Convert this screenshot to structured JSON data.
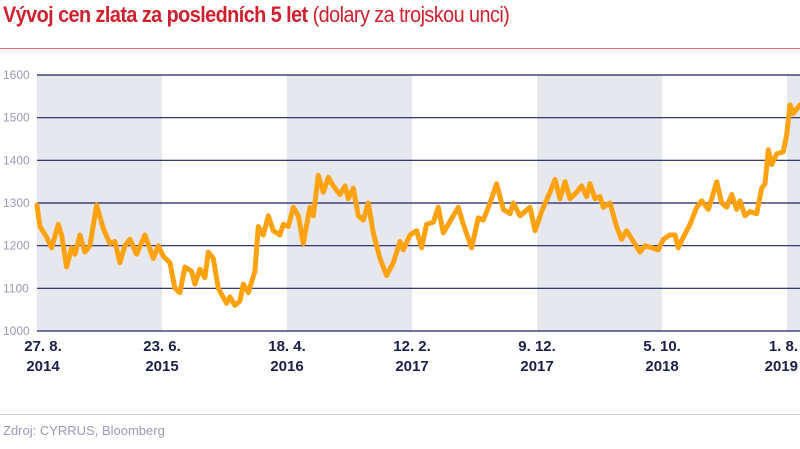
{
  "title": {
    "bold": "Vývoj cen zlata za posledních 5 let",
    "normal": "(dolary za trojskou unci)"
  },
  "source": "Zdroj: CYRRUS, Bloomberg",
  "colors": {
    "title": "#d0202e",
    "line": "#ffa20f",
    "grid": "#1c2260",
    "band": "#e7e7ee",
    "axis_text": "#9a9ab5",
    "tick_text": "#1c1f4a"
  },
  "chart_data": {
    "type": "line",
    "title": "Vývoj cen zlata za posledních 5 let (dolary za trojskou unci)",
    "xlabel": "",
    "ylabel": "",
    "xlim": [
      "2014-08-27",
      "2019-09-01"
    ],
    "ylim": [
      1000,
      1600
    ],
    "yticks": [
      1000,
      1100,
      1200,
      1300,
      1400,
      1500,
      1600
    ],
    "xticks": [
      {
        "date": "2014-08-27",
        "line1": "27. 8.",
        "line2": "2014"
      },
      {
        "date": "2015-06-23",
        "line1": "23. 6.",
        "line2": "2015"
      },
      {
        "date": "2016-04-18",
        "line1": "18. 4.",
        "line2": "2016"
      },
      {
        "date": "2017-02-12",
        "line1": "12. 2.",
        "line2": "2017"
      },
      {
        "date": "2017-12-09",
        "line1": "9. 12.",
        "line2": "2017"
      },
      {
        "date": "2018-10-05",
        "line1": "5. 10.",
        "line2": "2018"
      },
      {
        "date": "2019-08-01",
        "line1": "1. 8.",
        "line2": "2019"
      }
    ],
    "grid": true,
    "alternating_bands": true,
    "series": [
      {
        "x": [
          "2014-08-27",
          "2014-09-03",
          "2014-09-19",
          "2014-10-01",
          "2014-10-17",
          "2014-10-25",
          "2014-11-06",
          "2014-11-18",
          "2014-11-26",
          "2014-12-08",
          "2014-12-20",
          "2015-01-01",
          "2015-01-17",
          "2015-02-02",
          "2015-02-18",
          "2015-03-02",
          "2015-03-14",
          "2015-03-26",
          "2015-04-07",
          "2015-04-23",
          "2015-05-13",
          "2015-06-02",
          "2015-06-14",
          "2015-06-26",
          "2015-07-12",
          "2015-07-24",
          "2015-08-05",
          "2015-08-17",
          "2015-09-02",
          "2015-09-10",
          "2015-09-22",
          "2015-10-04",
          "2015-10-12",
          "2015-10-24",
          "2015-11-05",
          "2015-11-25",
          "2015-12-03",
          "2015-12-15",
          "2015-12-27",
          "2016-01-04",
          "2016-01-16",
          "2016-02-01",
          "2016-02-09",
          "2016-02-21",
          "2016-03-04",
          "2016-03-16",
          "2016-04-01",
          "2016-04-09",
          "2016-04-21",
          "2016-05-03",
          "2016-05-15",
          "2016-05-27",
          "2016-06-12",
          "2016-06-20",
          "2016-07-02",
          "2016-07-14",
          "2016-07-26",
          "2016-08-07",
          "2016-08-23",
          "2016-09-04",
          "2016-09-12",
          "2016-09-24",
          "2016-10-06",
          "2016-10-18",
          "2016-10-30",
          "2016-11-11",
          "2016-11-27",
          "2016-12-13",
          "2016-12-29",
          "2017-01-14",
          "2017-01-22",
          "2017-02-07",
          "2017-02-23",
          "2017-03-07",
          "2017-03-19",
          "2017-04-04",
          "2017-04-16",
          "2017-04-28",
          "2017-05-10",
          "2017-06-03",
          "2017-06-15",
          "2017-07-05",
          "2017-07-21",
          "2017-08-02",
          "2017-08-18",
          "2017-09-03",
          "2017-09-19",
          "2017-10-05",
          "2017-10-13",
          "2017-10-29",
          "2017-11-22",
          "2017-12-04",
          "2017-12-20",
          "2018-01-09",
          "2018-01-21",
          "2018-02-02",
          "2018-02-14",
          "2018-02-26",
          "2018-03-14",
          "2018-03-26",
          "2018-04-07",
          "2018-04-15",
          "2018-04-27",
          "2018-05-09",
          "2018-05-17",
          "2018-06-02",
          "2018-06-18",
          "2018-06-30",
          "2018-07-12",
          "2018-07-28",
          "2018-08-13",
          "2018-08-25",
          "2018-09-10",
          "2018-09-26",
          "2018-10-08",
          "2018-10-24",
          "2018-11-05",
          "2018-11-13",
          "2018-11-25",
          "2018-12-11",
          "2018-12-27",
          "2019-01-08",
          "2019-01-24",
          "2019-02-01",
          "2019-02-13",
          "2019-02-25",
          "2019-03-09",
          "2019-03-21",
          "2019-04-02",
          "2019-04-10",
          "2019-04-22",
          "2019-05-04",
          "2019-05-20",
          "2019-06-01",
          "2019-06-09",
          "2019-06-17",
          "2019-06-25",
          "2019-07-07",
          "2019-07-23",
          "2019-07-31",
          "2019-08-08",
          "2019-08-16",
          "2019-09-01"
        ],
        "values": [
          1295,
          1245,
          1220,
          1195,
          1250,
          1225,
          1150,
          1195,
          1180,
          1225,
          1185,
          1200,
          1295,
          1240,
          1205,
          1210,
          1160,
          1200,
          1215,
          1180,
          1225,
          1170,
          1200,
          1175,
          1160,
          1100,
          1090,
          1150,
          1140,
          1110,
          1145,
          1125,
          1185,
          1170,
          1100,
          1065,
          1080,
          1060,
          1070,
          1110,
          1090,
          1140,
          1245,
          1225,
          1270,
          1235,
          1225,
          1250,
          1245,
          1290,
          1270,
          1205,
          1290,
          1270,
          1365,
          1325,
          1360,
          1340,
          1320,
          1340,
          1310,
          1335,
          1270,
          1260,
          1300,
          1230,
          1170,
          1130,
          1160,
          1210,
          1190,
          1225,
          1235,
          1195,
          1250,
          1255,
          1290,
          1230,
          1250,
          1290,
          1250,
          1195,
          1265,
          1260,
          1300,
          1345,
          1285,
          1275,
          1300,
          1270,
          1290,
          1235,
          1280,
          1325,
          1355,
          1310,
          1350,
          1310,
          1325,
          1340,
          1315,
          1345,
          1310,
          1315,
          1290,
          1300,
          1245,
          1215,
          1235,
          1210,
          1185,
          1200,
          1195,
          1190,
          1215,
          1225,
          1225,
          1195,
          1220,
          1250,
          1290,
          1305,
          1285,
          1310,
          1350,
          1300,
          1290,
          1320,
          1285,
          1305,
          1270,
          1280,
          1275,
          1335,
          1345,
          1425,
          1390,
          1415,
          1420,
          1460,
          1530,
          1510,
          1530
        ]
      }
    ]
  }
}
